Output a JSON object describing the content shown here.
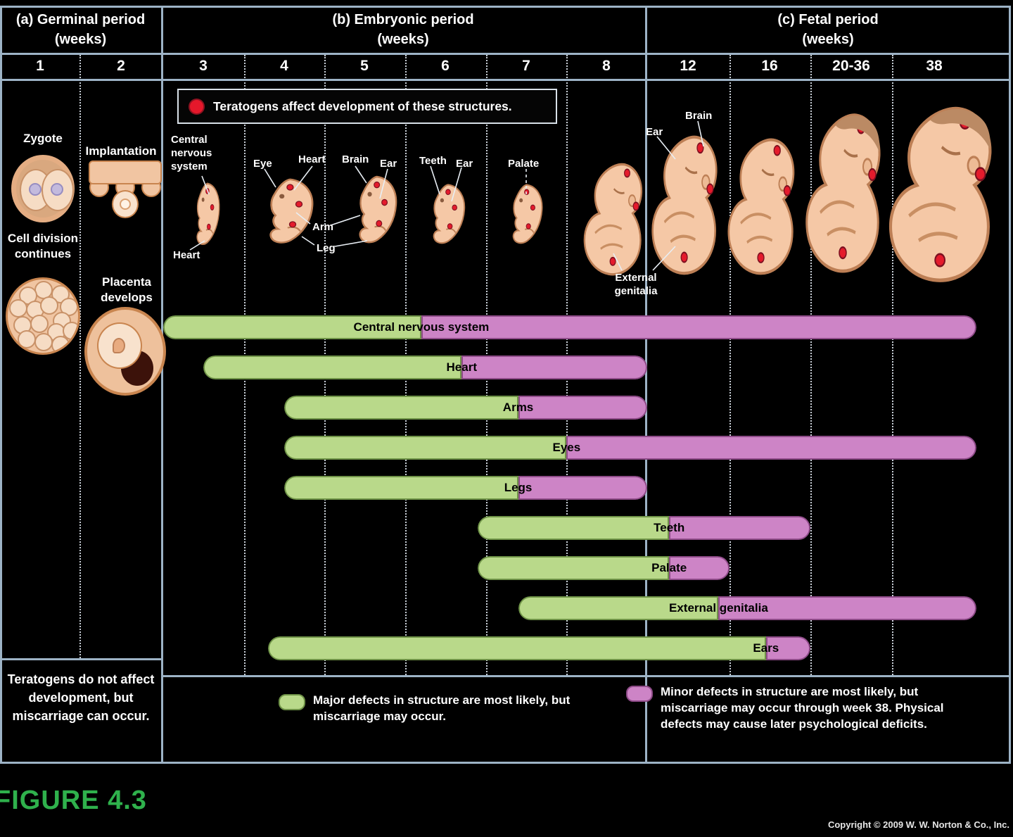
{
  "header": {
    "periods": [
      {
        "label": "(a) Germinal period",
        "sub": "(weeks)"
      },
      {
        "label": "(b) Embryonic period",
        "sub": "(weeks)"
      },
      {
        "label": "(c) Fetal period",
        "sub": "(weeks)"
      }
    ],
    "weeks": [
      "1",
      "2",
      "3",
      "4",
      "5",
      "6",
      "7",
      "8",
      "12",
      "16",
      "20-36",
      "38"
    ]
  },
  "banner": "Teratogens affect development of these structures.",
  "germinal": {
    "zygote": "Zygote",
    "cell_division": "Cell division continues",
    "implantation": "Implantation",
    "placenta": "Placenta develops",
    "note": "Teratogens do not affect development, but miscarriage can occur."
  },
  "anatomy_labels": [
    {
      "id": "cns",
      "text": "Central nervous system"
    },
    {
      "id": "heart3",
      "text": "Heart"
    },
    {
      "id": "eye",
      "text": "Eye"
    },
    {
      "id": "heart4",
      "text": "Heart"
    },
    {
      "id": "brain5",
      "text": "Brain"
    },
    {
      "id": "ear5",
      "text": "Ear"
    },
    {
      "id": "arm",
      "text": "Arm"
    },
    {
      "id": "leg",
      "text": "Leg"
    },
    {
      "id": "teeth6",
      "text": "Teeth"
    },
    {
      "id": "ear6",
      "text": "Ear"
    },
    {
      "id": "palate7",
      "text": "Palate"
    },
    {
      "id": "extgen",
      "text": "External genitalia"
    },
    {
      "id": "brain12",
      "text": "Brain"
    },
    {
      "id": "ear12",
      "text": "Ear"
    }
  ],
  "chart_data": {
    "type": "gantt-timeline",
    "x_unit": "weeks of gestation",
    "x_tick_labels": [
      "1",
      "2",
      "3",
      "4",
      "5",
      "6",
      "7",
      "8",
      "12",
      "16",
      "20-36",
      "38"
    ],
    "series_colors": {
      "major": "#b9d98a",
      "minor": "#cd84c6"
    },
    "structures": [
      {
        "name": "Central nervous system",
        "major_start": 3,
        "major_end": 6.2,
        "minor_end": 38
      },
      {
        "name": "Heart",
        "major_start": 3.5,
        "major_end": 6.7,
        "minor_end": 9
      },
      {
        "name": "Arms",
        "major_start": 4.5,
        "major_end": 7.4,
        "minor_end": 9
      },
      {
        "name": "Eyes",
        "major_start": 4.5,
        "major_end": 8,
        "minor_end": 38
      },
      {
        "name": "Legs",
        "major_start": 4.5,
        "major_end": 7.4,
        "minor_end": 9
      },
      {
        "name": "Teeth",
        "major_start": 6.9,
        "major_end": 9.8,
        "minor_end": 16
      },
      {
        "name": "Palate",
        "major_start": 6.9,
        "major_end": 9.8,
        "minor_end": 12
      },
      {
        "name": "External genitalia",
        "major_start": 7.4,
        "major_end": 11.6,
        "minor_end": 38
      },
      {
        "name": "Ears",
        "major_start": 4.3,
        "major_end": 13.8,
        "minor_end": 16
      }
    ]
  },
  "legend": [
    {
      "key": "major",
      "color": "#b9d98a",
      "text": "Major defects in structure are most likely, but miscarriage may occur."
    },
    {
      "key": "minor",
      "color": "#cd84c6",
      "text": "Minor defects in structure are most likely, but miscarriage may occur through week 38. Physical defects may cause later psychological deficits."
    }
  ],
  "footer": {
    "figure_label": "FIGURE 4.3",
    "copyright": "Copyright © 2009 W. W. Norton & Co., Inc."
  }
}
